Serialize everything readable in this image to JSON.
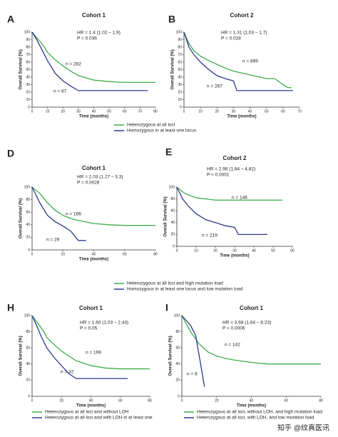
{
  "chart_data": [
    {
      "type": "line",
      "panel": "A",
      "title": "Cohort 1",
      "annotation": [
        "HR = 1.4 (1.02 – 1.9)",
        "P = 0.036"
      ],
      "xlabel": "Time (months)",
      "ylabel": "Overall Survival (%)",
      "xlim": [
        0,
        80
      ],
      "xticks": [
        0,
        10,
        20,
        30,
        40,
        50,
        60,
        70,
        80
      ],
      "ylim": [
        0,
        100
      ],
      "yticks": [
        0,
        10,
        20,
        30,
        40,
        50,
        60,
        70,
        80,
        90,
        100
      ],
      "series": [
        {
          "name": "Heterozygous at all loci",
          "color": "#3fae49",
          "label": "n = 282",
          "x": [
            0,
            2,
            5,
            8,
            10,
            15,
            20,
            25,
            30,
            40,
            50,
            60,
            70,
            80
          ],
          "values": [
            100,
            95,
            88,
            80,
            73,
            63,
            55,
            48,
            42,
            36,
            34,
            33,
            33,
            33
          ]
        },
        {
          "name": "Homozygous in at least one locus",
          "color": "#2b3a8c",
          "label": "n = 87",
          "x": [
            0,
            3,
            6,
            10,
            15,
            20,
            25,
            30,
            40,
            60,
            75
          ],
          "values": [
            100,
            90,
            78,
            62,
            45,
            35,
            28,
            22,
            22,
            22,
            22
          ]
        }
      ]
    },
    {
      "type": "line",
      "panel": "B",
      "title": "Cohort 2",
      "annotation": [
        "HR = 1.31 (1.03 – 1.7)",
        "P = 0.028"
      ],
      "xlabel": "Time (months)",
      "ylabel": "Overall Survival (%)",
      "xlim": [
        0,
        70
      ],
      "xticks": [
        0,
        10,
        20,
        30,
        40,
        50,
        60,
        70
      ],
      "ylim": [
        0,
        100
      ],
      "yticks": [
        0,
        10,
        20,
        30,
        40,
        50,
        60,
        70,
        80,
        90,
        100
      ],
      "series": [
        {
          "color": "#3fae49",
          "label": "n = 899",
          "x": [
            0,
            3,
            6,
            10,
            15,
            20,
            25,
            30,
            40,
            50,
            55,
            60,
            63,
            65
          ],
          "values": [
            100,
            85,
            75,
            68,
            62,
            57,
            52,
            48,
            43,
            38,
            38,
            30,
            26,
            26
          ]
        },
        {
          "color": "#2b3a8c",
          "label": "n = 267",
          "x": [
            0,
            3,
            6,
            10,
            15,
            20,
            25,
            30,
            32,
            40,
            50,
            60,
            66
          ],
          "values": [
            100,
            80,
            70,
            60,
            50,
            42,
            38,
            35,
            22,
            22,
            22,
            22,
            22
          ]
        }
      ]
    },
    {
      "type": "line",
      "panel": "D",
      "title": "Cohort 1",
      "annotation": [
        "HR = 2.03 (1.27 – 3.3)",
        "P = 0.0028"
      ],
      "xlabel": "Time (months)",
      "ylabel": "Overall Survival (%)",
      "xlim": [
        0,
        80
      ],
      "xticks": [
        0,
        20,
        40,
        60,
        80
      ],
      "ylim": [
        0,
        100
      ],
      "yticks": [
        0,
        20,
        40,
        60,
        80,
        100
      ],
      "series": [
        {
          "name": "Heterozygous at all loci and high mutation load",
          "color": "#3fae49",
          "label": "n = 166",
          "x": [
            0,
            5,
            10,
            15,
            20,
            25,
            30,
            40,
            50,
            60,
            70,
            80
          ],
          "values": [
            100,
            90,
            75,
            63,
            55,
            50,
            47,
            42,
            40,
            39,
            39,
            39
          ]
        },
        {
          "name": "Homozygous in at least one locus and low mutation load",
          "color": "#2b3a8c",
          "label": "n = 29",
          "x": [
            0,
            5,
            10,
            15,
            20,
            25,
            30,
            35
          ],
          "values": [
            100,
            75,
            55,
            45,
            38,
            30,
            15,
            15
          ]
        }
      ]
    },
    {
      "type": "line",
      "panel": "E",
      "title": "Cohort 2",
      "annotation": [
        "HR = 2.98 (1.84 – 4.82)",
        "P < 0.0001"
      ],
      "xlabel": "Time (months)",
      "ylabel": "Overall Survival (%)",
      "xlim": [
        0,
        60
      ],
      "xticks": [
        0,
        10,
        20,
        30,
        40,
        50,
        60
      ],
      "ylim": [
        0,
        100
      ],
      "yticks": [
        0,
        20,
        40,
        60,
        80,
        100
      ],
      "series": [
        {
          "color": "#3fae49",
          "label": "n = 146",
          "x": [
            0,
            3,
            5,
            10,
            15,
            20,
            30,
            40,
            50,
            55
          ],
          "values": [
            100,
            92,
            88,
            82,
            80,
            78,
            78,
            78,
            78,
            78
          ]
        },
        {
          "color": "#2b3a8c",
          "label": "n = 219",
          "x": [
            0,
            3,
            6,
            10,
            15,
            20,
            25,
            30,
            32,
            40,
            47
          ],
          "values": [
            100,
            80,
            68,
            55,
            45,
            40,
            35,
            32,
            20,
            20,
            20
          ]
        }
      ]
    },
    {
      "type": "line",
      "panel": "H",
      "title": "Cohort 1",
      "annotation": [
        "HR = 1.60 (1.03 – 2.43)",
        "P = 0.05"
      ],
      "xlabel": "Time (months)",
      "ylabel": "Overall Survival (%)",
      "xlim": [
        0,
        80
      ],
      "xticks": [
        0,
        20,
        40,
        60,
        80
      ],
      "ylim": [
        0,
        100
      ],
      "yticks": [
        0,
        20,
        40,
        60,
        80,
        100
      ],
      "series": [
        {
          "name": "Heterozygous at all loci and without LOH",
          "color": "#3fae49",
          "label": "n = 199",
          "x": [
            0,
            2,
            5,
            8,
            10,
            15,
            20,
            25,
            30,
            40,
            50,
            60,
            70,
            80
          ],
          "values": [
            100,
            95,
            88,
            80,
            73,
            64,
            56,
            50,
            44,
            38,
            35,
            34,
            34,
            34
          ]
        },
        {
          "name": "Heterozygous at all loci and with LOH in at least one",
          "color": "#2b3a8c",
          "label": "n = 32",
          "x": [
            0,
            3,
            6,
            10,
            15,
            20,
            25,
            30,
            40,
            50,
            65
          ],
          "values": [
            100,
            88,
            75,
            60,
            48,
            38,
            28,
            22,
            22,
            22,
            22
          ]
        }
      ]
    },
    {
      "type": "line",
      "panel": "I",
      "title": "Cohort 1",
      "annotation": [
        "HR = 3.68 (1.64 – 8.23)",
        "P = 0.0006"
      ],
      "xlabel": "Time (months)",
      "ylabel": "Overall Survival (%)",
      "xlim": [
        0,
        80
      ],
      "xticks": [
        0,
        20,
        40,
        60,
        80
      ],
      "ylim": [
        0,
        100
      ],
      "yticks": [
        0,
        20,
        40,
        60,
        80,
        100
      ],
      "series": [
        {
          "name": "Heterozygous at all loci, without LOH, and high mutation load",
          "color": "#3fae49",
          "label": "n = 142",
          "x": [
            0,
            5,
            10,
            15,
            20,
            25,
            30,
            40,
            50,
            60,
            70,
            80
          ],
          "values": [
            100,
            80,
            65,
            55,
            50,
            47,
            45,
            42,
            40,
            40,
            40,
            40
          ]
        },
        {
          "name": "Heterozygous at all loci, with LOH, and low mutation load",
          "color": "#2b3a8c",
          "label": "n = 8",
          "x": [
            0,
            5,
            8,
            10,
            12,
            13
          ],
          "values": [
            100,
            88,
            75,
            50,
            25,
            12
          ]
        }
      ]
    }
  ],
  "watermark": "知乎 @纹真医讯"
}
